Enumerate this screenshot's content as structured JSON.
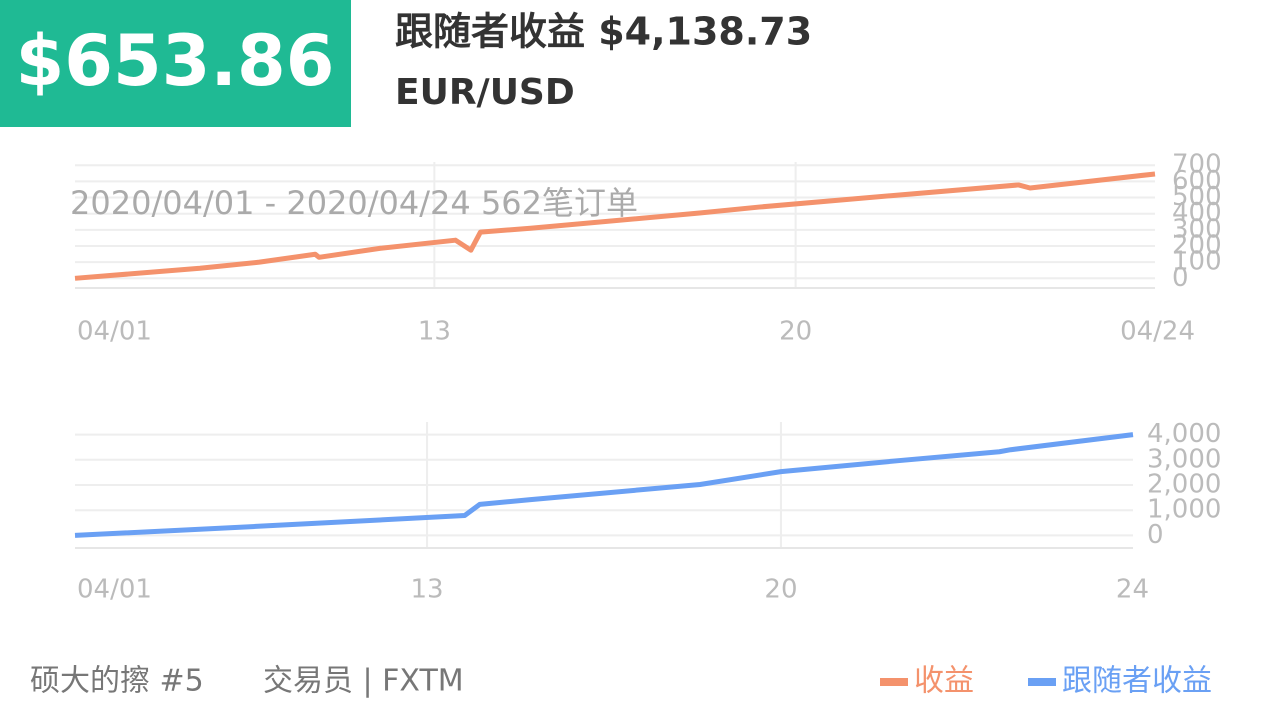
{
  "header": {
    "amount": "$653.86",
    "title": "跟随者收益 $4,138.73",
    "symbol": "EUR/USD",
    "overlay": "2020/04/01 - 2020/04/24  562笔订单"
  },
  "footer": {
    "name": "硕大的擦 #5",
    "role": "交易员 | FXTM"
  },
  "chart_data": [
    {
      "type": "line",
      "x": [
        0,
        65,
        96,
        125,
        127,
        159,
        198,
        206,
        211,
        237,
        325,
        356,
        429,
        491,
        497,
        562
      ],
      "series": [
        {
          "name": "收益",
          "color": "#f4926c",
          "values": [
            0,
            62,
            100,
            149,
            130,
            186,
            236,
            174,
            286,
            310,
            404,
            441,
            516,
            578,
            559,
            646
          ]
        }
      ],
      "xlim": [
        0,
        562
      ],
      "xticks": [
        {
          "value": 0,
          "label": "04/01"
        },
        {
          "value": 187,
          "label": "13"
        },
        {
          "value": 375,
          "label": "20"
        },
        {
          "value": 562,
          "label": "04/24"
        }
      ],
      "ylim": [
        -60,
        720
      ],
      "yticks": [
        0,
        100,
        200,
        300,
        400,
        500,
        600,
        700
      ],
      "grid": true
    },
    {
      "type": "line",
      "x": [
        0,
        96,
        127,
        207,
        215,
        242,
        332,
        375,
        438,
        491,
        497,
        562
      ],
      "series": [
        {
          "name": "跟随者收益",
          "color": "#6aa0f4",
          "values": [
            0,
            356,
            475,
            790,
            1230,
            1420,
            2020,
            2530,
            2970,
            3320,
            3400,
            4000
          ]
        }
      ],
      "xlim": [
        0,
        562
      ],
      "xticks": [
        {
          "value": 0,
          "label": "04/01"
        },
        {
          "value": 187,
          "label": "13"
        },
        {
          "value": 375,
          "label": "20"
        },
        {
          "value": 562,
          "label": "24"
        }
      ],
      "ylim": [
        -500,
        4500
      ],
      "yticks": [
        0,
        {
          "value": 1000,
          "label": "1,000"
        },
        {
          "value": 2000,
          "label": "2,000"
        },
        {
          "value": 3000,
          "label": "3,000"
        },
        {
          "value": 4000,
          "label": "4,000"
        }
      ],
      "grid": true
    }
  ]
}
